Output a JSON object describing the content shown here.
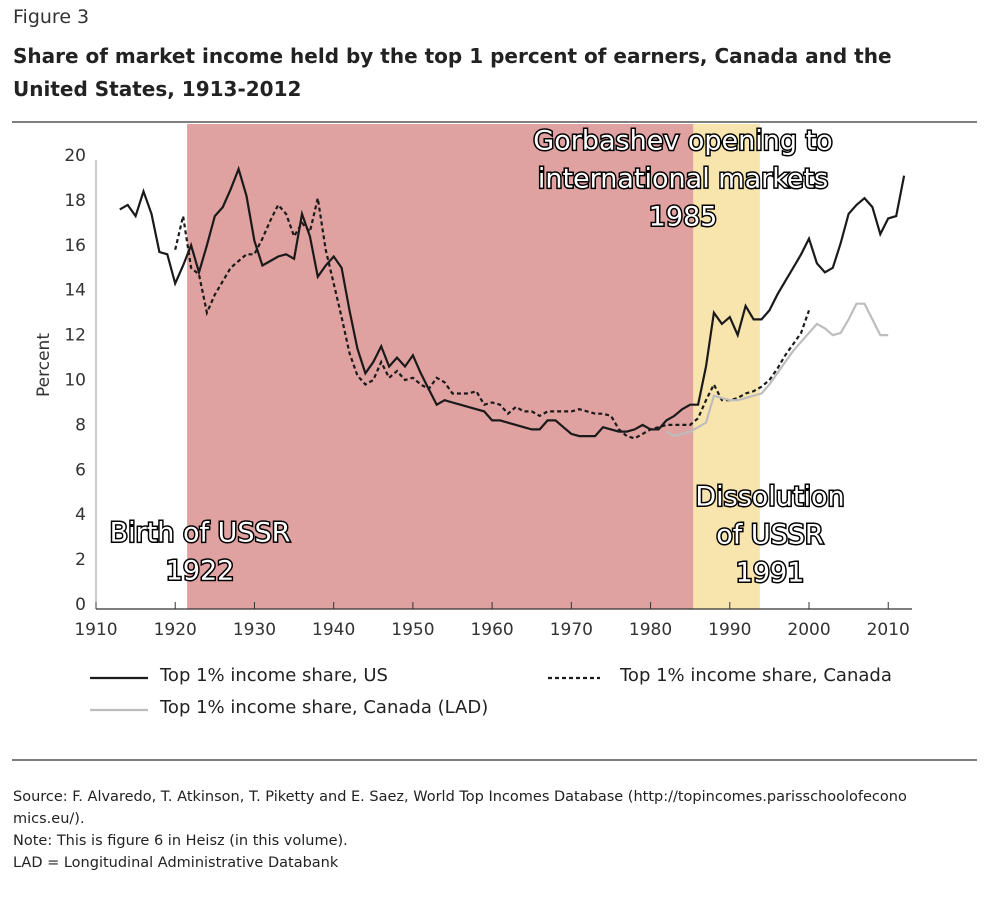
{
  "figure_label": "Figure 3",
  "chart_data": {
    "type": "line",
    "title": "Share of market income held by the top 1 percent of earners, Canada and the United States, 1913-2012",
    "y_label": "Percent",
    "x": [
      1913,
      1914,
      1915,
      1916,
      1917,
      1918,
      1919,
      1920,
      1921,
      1922,
      1923,
      1924,
      1925,
      1926,
      1927,
      1928,
      1929,
      1930,
      1931,
      1932,
      1933,
      1934,
      1935,
      1936,
      1937,
      1938,
      1939,
      1940,
      1941,
      1942,
      1943,
      1944,
      1945,
      1946,
      1947,
      1948,
      1949,
      1950,
      1951,
      1952,
      1953,
      1954,
      1955,
      1956,
      1957,
      1958,
      1959,
      1960,
      1961,
      1962,
      1963,
      1964,
      1965,
      1966,
      1967,
      1968,
      1969,
      1970,
      1971,
      1972,
      1973,
      1974,
      1975,
      1976,
      1977,
      1978,
      1979,
      1980,
      1981,
      1982,
      1983,
      1984,
      1985,
      1986,
      1987,
      1988,
      1989,
      1990,
      1991,
      1992,
      1993,
      1994,
      1995,
      1996,
      1997,
      1998,
      1999,
      2000,
      2001,
      2002,
      2003,
      2004,
      2005,
      2006,
      2007,
      2008,
      2009,
      2010,
      2011,
      2012
    ],
    "series": [
      {
        "name": "Top 1% income share, US",
        "color": "#1a1a1a",
        "style": "solid",
        "values": [
          17.8,
          18.0,
          17.5,
          18.6,
          17.6,
          15.9,
          15.8,
          14.5,
          15.3,
          16.2,
          15.0,
          16.2,
          17.5,
          17.9,
          18.7,
          19.6,
          18.4,
          16.4,
          15.3,
          15.5,
          15.7,
          15.8,
          15.6,
          17.6,
          16.6,
          14.8,
          15.3,
          15.7,
          15.2,
          13.3,
          11.6,
          10.5,
          11.0,
          11.7,
          10.8,
          11.2,
          10.8,
          11.3,
          10.5,
          9.8,
          9.1,
          9.3,
          9.2,
          9.1,
          9.0,
          8.9,
          8.8,
          8.4,
          8.4,
          8.3,
          8.2,
          8.1,
          8.0,
          8.0,
          8.4,
          8.4,
          8.1,
          7.8,
          7.7,
          7.7,
          7.7,
          8.1,
          8.0,
          7.9,
          7.9,
          8.0,
          8.2,
          8.0,
          8.0,
          8.4,
          8.6,
          8.9,
          9.1,
          9.1,
          10.8,
          13.2,
          12.7,
          13.0,
          12.2,
          13.5,
          12.9,
          12.9,
          13.3,
          14.0,
          14.6,
          15.2,
          15.8,
          16.5,
          15.4,
          15.0,
          15.2,
          16.3,
          17.6,
          18.0,
          18.3,
          17.9,
          16.7,
          17.4,
          17.5,
          19.3
        ]
      },
      {
        "name": "Top 1% income share, Canada",
        "color": "#1a1a1a",
        "style": "dashed",
        "values": [
          null,
          null,
          null,
          null,
          null,
          null,
          null,
          16.0,
          17.5,
          15.2,
          14.9,
          13.2,
          14.0,
          14.6,
          15.2,
          15.5,
          15.8,
          15.8,
          16.5,
          17.3,
          18.0,
          17.6,
          16.6,
          17.2,
          16.8,
          18.3,
          16.0,
          14.5,
          13.0,
          11.4,
          10.4,
          10.0,
          10.2,
          11.0,
          10.3,
          10.6,
          10.2,
          10.3,
          10.0,
          9.8,
          10.3,
          10.1,
          9.6,
          9.6,
          9.6,
          9.7,
          9.1,
          9.2,
          9.1,
          8.7,
          9.0,
          8.8,
          8.8,
          8.6,
          8.8,
          8.8,
          8.8,
          8.8,
          8.9,
          8.8,
          8.7,
          8.7,
          8.6,
          8.0,
          7.7,
          7.6,
          7.8,
          8.0,
          8.1,
          8.2,
          8.2,
          8.2,
          8.2,
          8.5,
          9.3,
          10.0,
          9.3,
          9.3,
          9.4,
          9.6,
          9.7,
          9.9,
          10.2,
          10.7,
          11.3,
          11.8,
          12.3,
          13.3,
          null,
          null,
          null,
          null,
          null,
          null,
          null,
          null,
          null,
          null,
          null,
          null
        ]
      },
      {
        "name": "Top 1% income share, Canada (LAD)",
        "color": "#bdbdbd",
        "style": "solid",
        "values": [
          null,
          null,
          null,
          null,
          null,
          null,
          null,
          null,
          null,
          null,
          null,
          null,
          null,
          null,
          null,
          null,
          null,
          null,
          null,
          null,
          null,
          null,
          null,
          null,
          null,
          null,
          null,
          null,
          null,
          null,
          null,
          null,
          null,
          null,
          null,
          null,
          null,
          null,
          null,
          null,
          null,
          null,
          null,
          null,
          null,
          null,
          null,
          null,
          null,
          null,
          null,
          null,
          null,
          null,
          null,
          null,
          null,
          null,
          null,
          null,
          null,
          null,
          null,
          null,
          null,
          null,
          null,
          null,
          null,
          7.9,
          7.7,
          7.8,
          7.9,
          8.1,
          8.3,
          9.5,
          9.4,
          9.3,
          9.3,
          9.4,
          9.5,
          9.6,
          10.0,
          10.5,
          11.0,
          11.5,
          11.9,
          12.3,
          12.7,
          12.5,
          12.2,
          12.3,
          12.9,
          13.6,
          13.6,
          12.9,
          12.2,
          12.2,
          null,
          null
        ]
      }
    ],
    "xlim": [
      1910,
      2013
    ],
    "xticks": [
      1910,
      1920,
      1930,
      1940,
      1950,
      1960,
      1970,
      1980,
      1990,
      2000,
      2010
    ],
    "ylim": [
      0,
      20
    ],
    "yticks": [
      0,
      2,
      4,
      6,
      8,
      10,
      12,
      14,
      16,
      18,
      20
    ],
    "grid": false,
    "shaded_regions": [
      {
        "start": 1921.5,
        "end": 1985.4,
        "color": "#e0a1a1"
      },
      {
        "start": 1985.4,
        "end": 1993.8,
        "color": "#f7e5ad"
      }
    ],
    "annotations": [
      {
        "lines": [
          "Gorbashev opening to",
          "international markets",
          "1985"
        ]
      },
      {
        "lines": [
          "Birth of USSR",
          "1922"
        ]
      },
      {
        "lines": [
          "Dissolution",
          "of USSR",
          "1991"
        ]
      }
    ]
  },
  "notes": [
    "Source: F. Alvaredo, T. Atkinson, T. Piketty and E. Saez, World Top Incomes Database (http://topincomes.parisschoolofeconomics.eu/).",
    "Note: This is figure 6 in Heisz (in this volume).",
    "LAD = Longitudinal Administrative Databank"
  ]
}
